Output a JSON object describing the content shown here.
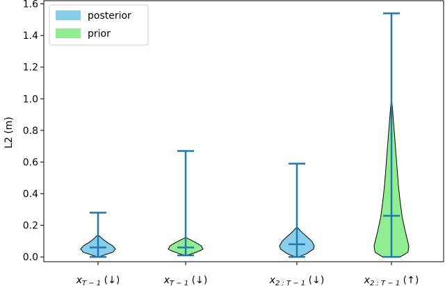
{
  "chart_data": {
    "type": "violin",
    "title": "",
    "xlabel": "",
    "ylabel": "L2 (m)",
    "ylim": [
      -0.03,
      1.62
    ],
    "yticks": [
      0.0,
      0.2,
      0.4,
      0.6,
      0.8,
      1.0,
      1.2,
      1.4,
      1.6
    ],
    "ytick_labels": [
      "0.0",
      "0.2",
      "0.4",
      "0.6",
      "0.8",
      "1.0",
      "1.2",
      "1.4",
      "1.6"
    ],
    "legend": {
      "placement": "top-left",
      "entries": [
        {
          "name": "posterior",
          "color": "#87ceeb"
        },
        {
          "name": "prior",
          "color": "#90ee90"
        }
      ]
    },
    "colors": {
      "posterior": "#87ceeb",
      "prior": "#90ee90",
      "stats": "#1f77b4",
      "outline": "#000000"
    },
    "categories": [
      {
        "label_main": "x",
        "label_sub": "T − 1",
        "arrow": "(↓)"
      },
      {
        "label_main": "x",
        "label_sub": "T − 1",
        "arrow": "(↓)"
      },
      {
        "label_main": "x",
        "label_sub": "2 : T − 1",
        "arrow": "(↓)"
      },
      {
        "label_main": "x",
        "label_sub": "2 : T − 1",
        "arrow": "(↑)"
      }
    ],
    "violins": [
      {
        "group": "posterior",
        "min": 0.0,
        "max": 0.28,
        "median": 0.06,
        "profile": [
          [
            0.0,
            0.04
          ],
          [
            0.01,
            0.3
          ],
          [
            0.03,
            0.85
          ],
          [
            0.05,
            1.0
          ],
          [
            0.07,
            0.85
          ],
          [
            0.09,
            0.55
          ],
          [
            0.11,
            0.3
          ],
          [
            0.13,
            0.1
          ],
          [
            0.14,
            0.0
          ]
        ]
      },
      {
        "group": "prior",
        "min": 0.01,
        "max": 0.67,
        "median": 0.06,
        "profile": [
          [
            0.01,
            0.05
          ],
          [
            0.02,
            0.35
          ],
          [
            0.04,
            0.85
          ],
          [
            0.05,
            1.0
          ],
          [
            0.07,
            0.9
          ],
          [
            0.09,
            0.6
          ],
          [
            0.11,
            0.25
          ],
          [
            0.12,
            0.05
          ],
          [
            0.13,
            0.0
          ]
        ]
      },
      {
        "group": "posterior",
        "min": 0.0,
        "max": 0.59,
        "median": 0.08,
        "profile": [
          [
            0.0,
            0.1
          ],
          [
            0.02,
            0.55
          ],
          [
            0.05,
            0.95
          ],
          [
            0.07,
            1.0
          ],
          [
            0.1,
            0.85
          ],
          [
            0.13,
            0.55
          ],
          [
            0.16,
            0.25
          ],
          [
            0.18,
            0.08
          ],
          [
            0.19,
            0.0
          ]
        ]
      },
      {
        "group": "prior",
        "min": 0.0,
        "max": 1.54,
        "median": 0.26,
        "profile": [
          [
            0.0,
            0.5
          ],
          [
            0.03,
            0.95
          ],
          [
            0.07,
            1.0
          ],
          [
            0.15,
            0.82
          ],
          [
            0.25,
            0.62
          ],
          [
            0.35,
            0.5
          ],
          [
            0.45,
            0.4
          ],
          [
            0.55,
            0.33
          ],
          [
            0.65,
            0.26
          ],
          [
            0.75,
            0.19
          ],
          [
            0.85,
            0.12
          ],
          [
            0.95,
            0.05
          ],
          [
            1.0,
            0.0
          ]
        ]
      }
    ]
  }
}
